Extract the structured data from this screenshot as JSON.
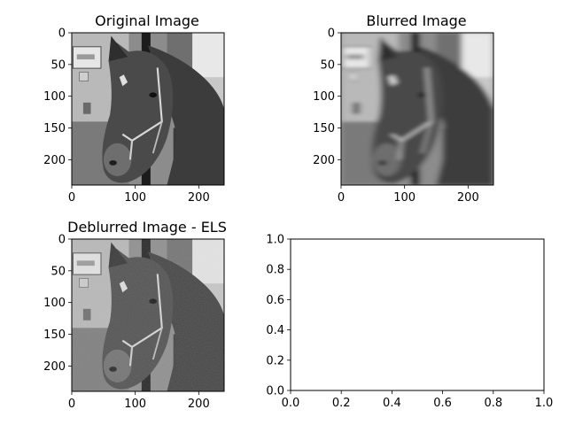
{
  "chart_data": [
    {
      "type": "image",
      "title": "Original Image",
      "xticks": [
        0,
        100,
        200
      ],
      "yticks": [
        0,
        50,
        100,
        150,
        200
      ],
      "xlim": [
        0,
        240
      ],
      "ylim": [
        240,
        0
      ],
      "image_content": "grayscale photograph of a horse head with halter"
    },
    {
      "type": "image",
      "title": "Blurred Image",
      "xticks": [
        0,
        100,
        200
      ],
      "yticks": [
        0,
        50,
        100,
        150,
        200
      ],
      "xlim": [
        0,
        240
      ],
      "ylim": [
        240,
        0
      ],
      "image_content": "motion-blurred grayscale photograph of a horse head"
    },
    {
      "type": "image",
      "title": "Deblurred Image - ELS",
      "xticks": [
        0,
        100,
        200
      ],
      "yticks": [
        0,
        50,
        100,
        150,
        200
      ],
      "xlim": [
        0,
        240
      ],
      "ylim": [
        240,
        0
      ],
      "image_content": "restored grayscale photograph of a horse head"
    },
    {
      "type": "empty",
      "title": "",
      "xticks": [
        "0.0",
        "0.2",
        "0.4",
        "0.6",
        "0.8",
        "1.0"
      ],
      "yticks": [
        "0.0",
        "0.2",
        "0.4",
        "0.6",
        "0.8",
        "1.0"
      ],
      "xlim": [
        0,
        1
      ],
      "ylim": [
        0,
        1
      ]
    }
  ]
}
